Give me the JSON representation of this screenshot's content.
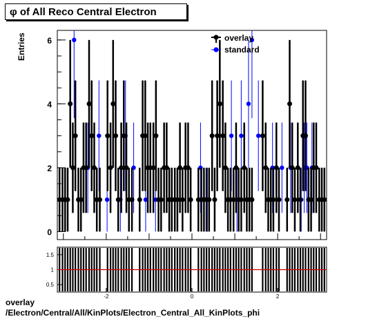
{
  "title": "φ of All Reco Central Electron",
  "caption_line1": "overlay",
  "caption_line2": "/Electron/Central/All/KinPlots/Electron_Central_All_KinPlots_phi",
  "colors": {
    "overlay": "#000000",
    "standard": "#0000ff",
    "ratio_line": "#cc0000"
  },
  "chart_data": [
    {
      "type": "scatter",
      "ylabel": "Entries",
      "xlim": [
        -3.14159,
        3.14159
      ],
      "ylim": [
        -0.25,
        6.3
      ],
      "yticks": [
        0,
        2,
        4,
        6
      ],
      "legend": "top-right",
      "series": [
        {
          "name": "overlay",
          "x": [
            -3.09,
            -3.02,
            -2.96,
            -2.9,
            -2.84,
            -2.78,
            -2.72,
            -2.65,
            -2.59,
            -2.53,
            -2.47,
            -2.4,
            -2.34,
            -2.28,
            -2.22,
            -2.15,
            -2.09,
            -2.03,
            -1.97,
            -1.9,
            -1.84,
            -1.78,
            -1.72,
            -1.65,
            -1.59,
            -1.53,
            -1.47,
            -1.4,
            -1.34,
            -1.28,
            -1.22,
            -1.15,
            -1.09,
            -1.03,
            -0.97,
            -0.9,
            -0.84,
            -0.78,
            -0.72,
            -0.65,
            -0.59,
            -0.53,
            -0.47,
            -0.4,
            -0.34,
            -0.28,
            -0.22,
            -0.15,
            -0.09,
            -0.03,
            0.03,
            0.09,
            0.15,
            0.22,
            0.28,
            0.34,
            0.4,
            0.47,
            0.53,
            0.59,
            0.65,
            0.72,
            0.78,
            0.84,
            0.9,
            0.97,
            1.03,
            1.09,
            1.15,
            1.22,
            1.28,
            1.34,
            1.4,
            1.47,
            1.53,
            1.59,
            1.65,
            1.72,
            1.78,
            1.84,
            1.9,
            1.97,
            2.03,
            2.09,
            2.15,
            2.22,
            2.28,
            2.34,
            2.4,
            2.47,
            2.53,
            2.59,
            2.65,
            2.72,
            2.78,
            2.84,
            2.9,
            2.97,
            3.03,
            3.09
          ],
          "y": [
            1,
            1,
            1,
            1,
            4,
            2,
            3,
            1,
            1,
            2,
            2,
            4,
            3,
            2,
            1,
            1,
            0,
            0,
            3,
            2,
            4,
            3,
            1,
            2,
            3,
            2,
            1,
            1,
            0,
            0,
            1,
            3,
            3,
            2,
            2,
            2,
            3,
            1,
            1,
            2,
            2,
            1,
            1,
            1,
            1,
            2,
            1,
            2,
            2,
            1,
            0,
            0,
            1,
            1,
            1,
            1,
            1,
            3,
            1,
            3,
            4,
            3,
            2,
            1,
            1,
            1,
            2,
            1,
            1,
            2,
            1,
            1,
            1,
            0,
            0,
            0,
            3,
            2,
            1,
            1,
            1,
            2,
            1,
            0,
            0,
            1,
            4,
            2,
            1,
            2,
            1,
            3,
            3,
            1,
            1,
            2,
            2,
            1,
            1,
            1
          ]
        },
        {
          "name": "standard",
          "x": [
            -2.95,
            -2.75,
            -2.58,
            -2.43,
            -2.17,
            -1.98,
            -1.67,
            -1.55,
            -1.36,
            -1.08,
            -0.85,
            -0.52,
            -0.15,
            0.2,
            0.36,
            0.92,
            1.05,
            1.15,
            1.32,
            1.4,
            1.55,
            1.88,
            2.1,
            2.3,
            2.55,
            2.62,
            2.68,
            2.8
          ],
          "y": [
            1,
            6,
            1,
            2,
            3,
            1,
            1,
            3,
            2,
            1,
            1,
            1,
            2,
            2,
            1,
            3,
            1,
            3,
            4,
            6,
            3,
            2,
            2,
            2,
            1,
            2,
            2,
            2
          ]
        }
      ]
    },
    {
      "type": "scatter",
      "xlim": [
        -3.14159,
        3.14159
      ],
      "ylim": [
        0.25,
        1.75
      ],
      "yticks": [
        0.5,
        1,
        1.5
      ],
      "xticks": [
        -2,
        0,
        2
      ],
      "reference_line": 1
    }
  ]
}
